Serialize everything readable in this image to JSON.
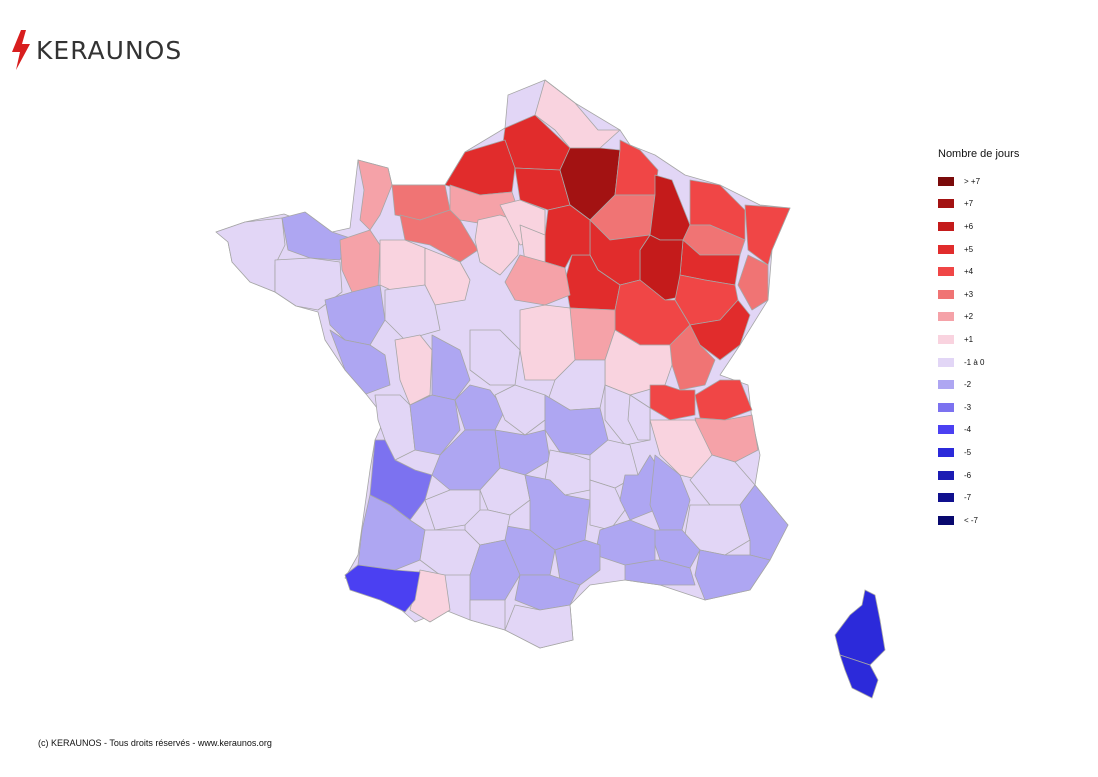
{
  "brand": {
    "name": "KERAUNOS",
    "accent": "#d81e1e"
  },
  "legend": {
    "title": "Nombre de jours",
    "items": [
      {
        "label": "> +7",
        "color": "#7a0a0a"
      },
      {
        "label": "+7",
        "color": "#a31212"
      },
      {
        "label": "+6",
        "color": "#c41b1b"
      },
      {
        "label": "+5",
        "color": "#e12c2c"
      },
      {
        "label": "+4",
        "color": "#f04646"
      },
      {
        "label": "+3",
        "color": "#f07474"
      },
      {
        "label": "+2",
        "color": "#f5a2a8"
      },
      {
        "label": "+1",
        "color": "#f9d3df"
      },
      {
        "label": "-1 à 0",
        "color": "#e2d6f6"
      },
      {
        "label": "-2",
        "color": "#aea6f2"
      },
      {
        "label": "-3",
        "color": "#7c72f0"
      },
      {
        "label": "-4",
        "color": "#4b40f2"
      },
      {
        "label": "-5",
        "color": "#2c2ada"
      },
      {
        "label": "-6",
        "color": "#1c1cb4"
      },
      {
        "label": "-7",
        "color": "#10108e"
      },
      {
        "label": "< -7",
        "color": "#08086e"
      }
    ]
  },
  "copyright": "(c) KERAUNOS - Tous droits réservés - www.keraunos.org"
}
